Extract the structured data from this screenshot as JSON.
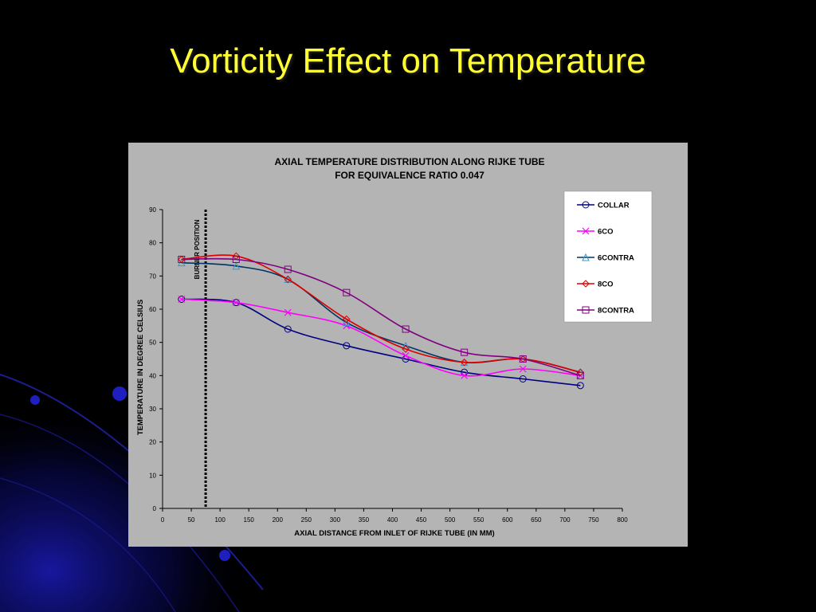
{
  "slide": {
    "title": "Vorticity Effect on Temperature"
  },
  "colors": {
    "background": "#000000",
    "title": "#ffff33",
    "chart_bg": "#b4b4b4",
    "decor": "#1a1aa0"
  },
  "chart_data": {
    "type": "line",
    "title": "AXIAL TEMPERATURE DISTRIBUTION ALONG RIJKE TUBE",
    "subtitle": "FOR EQUIVALENCE RATIO 0.047",
    "xlabel": "AXIAL DISTANCE FROM INLET OF RIJKE TUBE (IN MM)",
    "ylabel": "TEMPERATURE IN DEGREE CELSIUS",
    "xlim": [
      0,
      800
    ],
    "ylim": [
      0,
      90
    ],
    "xticks": [
      0,
      50,
      100,
      150,
      200,
      250,
      300,
      350,
      400,
      450,
      500,
      550,
      600,
      650,
      700,
      750,
      800
    ],
    "yticks": [
      0,
      10,
      20,
      30,
      40,
      50,
      60,
      70,
      80,
      90
    ],
    "grid": false,
    "legend_position": "top-right",
    "annotation": {
      "text": "BURNER POSITION",
      "x": 75
    },
    "x": [
      33,
      128,
      218,
      320,
      423,
      525,
      627,
      727
    ],
    "series": [
      {
        "name": "COLLAR",
        "color": "#000080",
        "marker": "circle",
        "values": [
          63,
          62,
          54,
          49,
          45,
          41,
          39,
          37
        ]
      },
      {
        "name": "6CO",
        "color": "#ff00ff",
        "marker": "x",
        "values": [
          63,
          62,
          59,
          55,
          46,
          40,
          42,
          40
        ]
      },
      {
        "name": "6CONTRA",
        "color": "#003366",
        "marker": "triangle",
        "values": [
          74,
          73,
          69,
          56,
          49,
          44,
          45,
          41
        ]
      },
      {
        "name": "8CO",
        "color": "#dd0000",
        "marker": "diamond",
        "values": [
          75,
          76,
          69,
          57,
          48,
          44,
          45,
          41
        ]
      },
      {
        "name": "8CONTRA",
        "color": "#800080",
        "marker": "square",
        "values": [
          75,
          75,
          72,
          65,
          54,
          47,
          45,
          40
        ]
      }
    ]
  }
}
